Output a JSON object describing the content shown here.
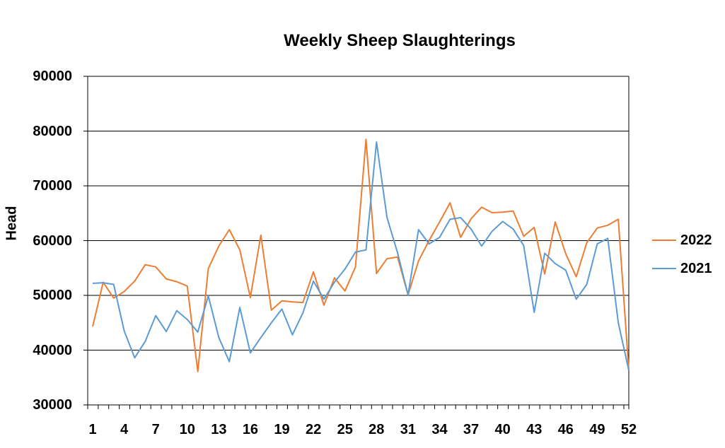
{
  "chart_data": {
    "type": "line",
    "title": "Weekly Sheep Slaughterings",
    "xlabel": "",
    "ylabel": "Head",
    "ylim": [
      30000,
      90000
    ],
    "yticks": [
      30000,
      40000,
      50000,
      60000,
      70000,
      80000,
      90000
    ],
    "ytick_labels": [
      "30000",
      "40000",
      "50000",
      "60000",
      "70000",
      "80000",
      "90000"
    ],
    "xlim": [
      1,
      52
    ],
    "x": [
      1,
      2,
      3,
      4,
      5,
      6,
      7,
      8,
      9,
      10,
      11,
      12,
      13,
      14,
      15,
      16,
      17,
      18,
      19,
      20,
      21,
      22,
      23,
      24,
      25,
      26,
      27,
      28,
      29,
      30,
      31,
      32,
      33,
      34,
      35,
      36,
      37,
      38,
      39,
      40,
      41,
      42,
      43,
      44,
      45,
      46,
      47,
      48,
      49,
      50,
      51,
      52
    ],
    "xtick_labels": [
      "1",
      "4",
      "7",
      "10",
      "13",
      "16",
      "19",
      "22",
      "25",
      "28",
      "31",
      "34",
      "37",
      "40",
      "43",
      "46",
      "49",
      "52"
    ],
    "xtick_values": [
      1,
      4,
      7,
      10,
      13,
      16,
      19,
      22,
      25,
      28,
      31,
      34,
      37,
      40,
      43,
      46,
      49,
      52
    ],
    "grid": "horizontal",
    "legend_position": "right",
    "series": [
      {
        "name": "2022",
        "color": "#ED7D31",
        "values": [
          44300,
          52400,
          49500,
          50700,
          52600,
          55600,
          55200,
          53000,
          52500,
          51700,
          36100,
          54900,
          59000,
          62000,
          58300,
          49600,
          61000,
          47300,
          49000,
          48800,
          48700,
          54300,
          48200,
          53200,
          50800,
          55200,
          78500,
          54000,
          56700,
          57000,
          50100,
          56300,
          60000,
          63400,
          66900,
          60600,
          64000,
          66100,
          65100,
          65200,
          65400,
          60800,
          62400,
          53900,
          63400,
          57600,
          53400,
          59600,
          62300,
          62800,
          63900,
          36300
        ]
      },
      {
        "name": "2021",
        "color": "#5B9BD5",
        "values": [
          52200,
          52300,
          52000,
          43500,
          38600,
          41600,
          46300,
          43400,
          47200,
          45600,
          43300,
          49900,
          42300,
          37900,
          47800,
          39500,
          42300,
          45000,
          47500,
          42800,
          46800,
          52600,
          49300,
          52400,
          54800,
          57900,
          58300,
          78000,
          64200,
          57800,
          50100,
          62000,
          59400,
          60600,
          63900,
          64200,
          62100,
          59000,
          61700,
          63500,
          62100,
          59100,
          46900,
          57700,
          55800,
          54600,
          49300,
          52000,
          59400,
          60400,
          45000,
          36300
        ]
      }
    ]
  }
}
